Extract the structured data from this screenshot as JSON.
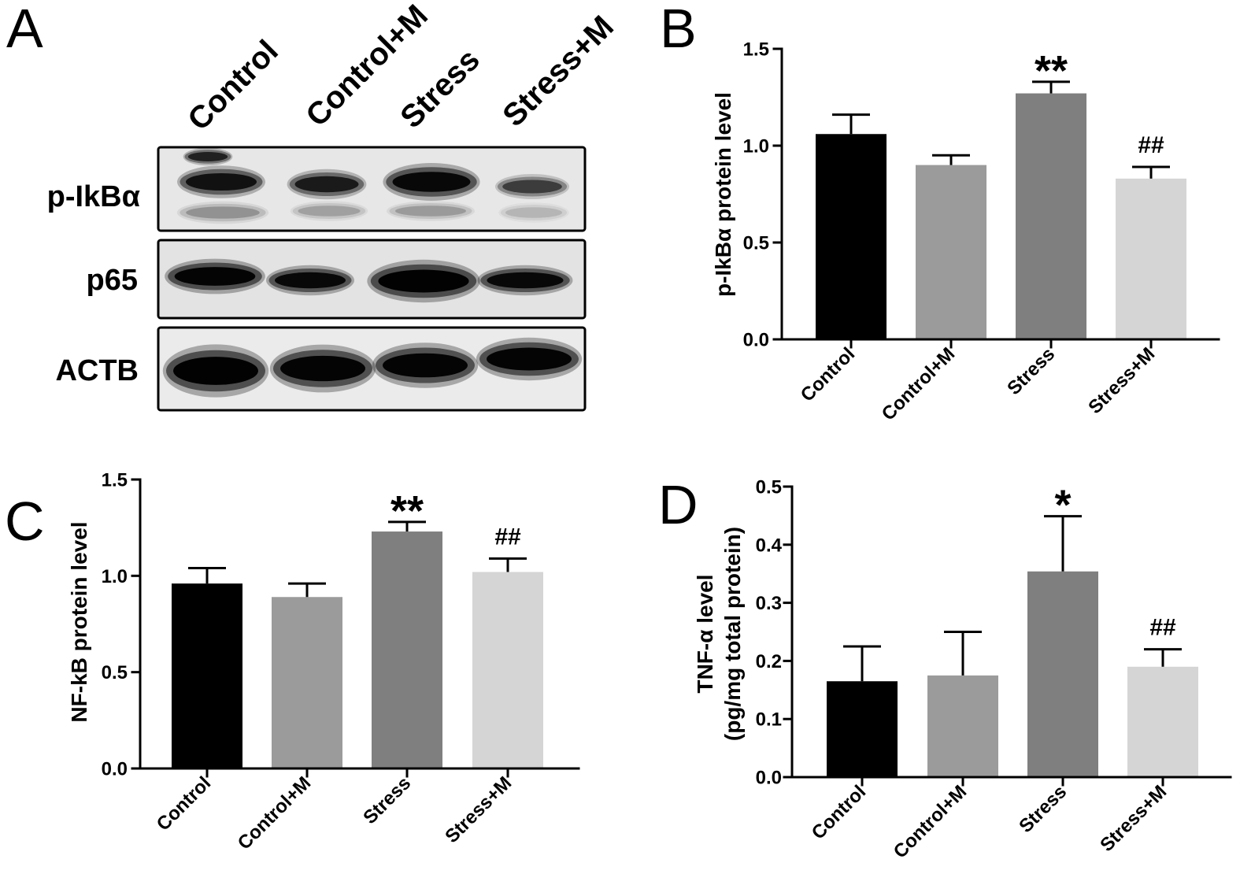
{
  "blot": {
    "panel": "A",
    "lanes": [
      "Control",
      "Control+M",
      "Stress",
      "Stress+M"
    ],
    "rows": [
      "p-IkBα",
      "p65",
      "ACTB"
    ]
  },
  "chart_data": [
    {
      "panel": "B",
      "type": "bar",
      "categories": [
        "Control",
        "Control+M",
        "Stress",
        "Stress+M"
      ],
      "values": [
        1.06,
        0.9,
        1.27,
        0.83
      ],
      "errors": [
        0.1,
        0.05,
        0.06,
        0.06
      ],
      "annotations": [
        "",
        "",
        "**",
        "##"
      ],
      "ylabel_lines": [
        "p-IkBα protein level"
      ],
      "ylim": [
        0,
        1.5
      ],
      "yticks": [
        0,
        0.5,
        1.0,
        1.5
      ],
      "ytick_labels": [
        "0.0",
        "0.5",
        "1.0",
        "1.5"
      ],
      "bar_colors": [
        "#000000",
        "#9b9b9b",
        "#7f7f7f",
        "#d5d5d5"
      ],
      "grid": false
    },
    {
      "panel": "C",
      "type": "bar",
      "categories": [
        "Control",
        "Control+M",
        "Stress",
        "Stress+M"
      ],
      "values": [
        0.96,
        0.89,
        1.23,
        1.02
      ],
      "errors": [
        0.08,
        0.07,
        0.05,
        0.07
      ],
      "annotations": [
        "",
        "",
        "**",
        "##"
      ],
      "ylabel_lines": [
        "NF-kB protein level"
      ],
      "ylim": [
        0,
        1.5
      ],
      "yticks": [
        0,
        0.5,
        1.0,
        1.5
      ],
      "ytick_labels": [
        "0.0",
        "0.5",
        "1.0",
        "1.5"
      ],
      "bar_colors": [
        "#000000",
        "#9b9b9b",
        "#7f7f7f",
        "#d5d5d5"
      ],
      "grid": false
    },
    {
      "panel": "D",
      "type": "bar",
      "categories": [
        "Control",
        "Control+M",
        "Stress",
        "Stress+M"
      ],
      "values": [
        0.165,
        0.175,
        0.354,
        0.19
      ],
      "errors": [
        0.06,
        0.075,
        0.095,
        0.03
      ],
      "annotations": [
        "",
        "",
        "*",
        "##"
      ],
      "ylabel_lines": [
        "TNF-α level",
        "(pg/mg total protein)"
      ],
      "ylim": [
        0,
        0.5
      ],
      "yticks": [
        0,
        0.1,
        0.2,
        0.3,
        0.4,
        0.5
      ],
      "ytick_labels": [
        "0.0",
        "0.1",
        "0.2",
        "0.3",
        "0.4",
        "0.5"
      ],
      "bar_colors": [
        "#000000",
        "#9b9b9b",
        "#7f7f7f",
        "#d5d5d5"
      ],
      "grid": false
    }
  ]
}
